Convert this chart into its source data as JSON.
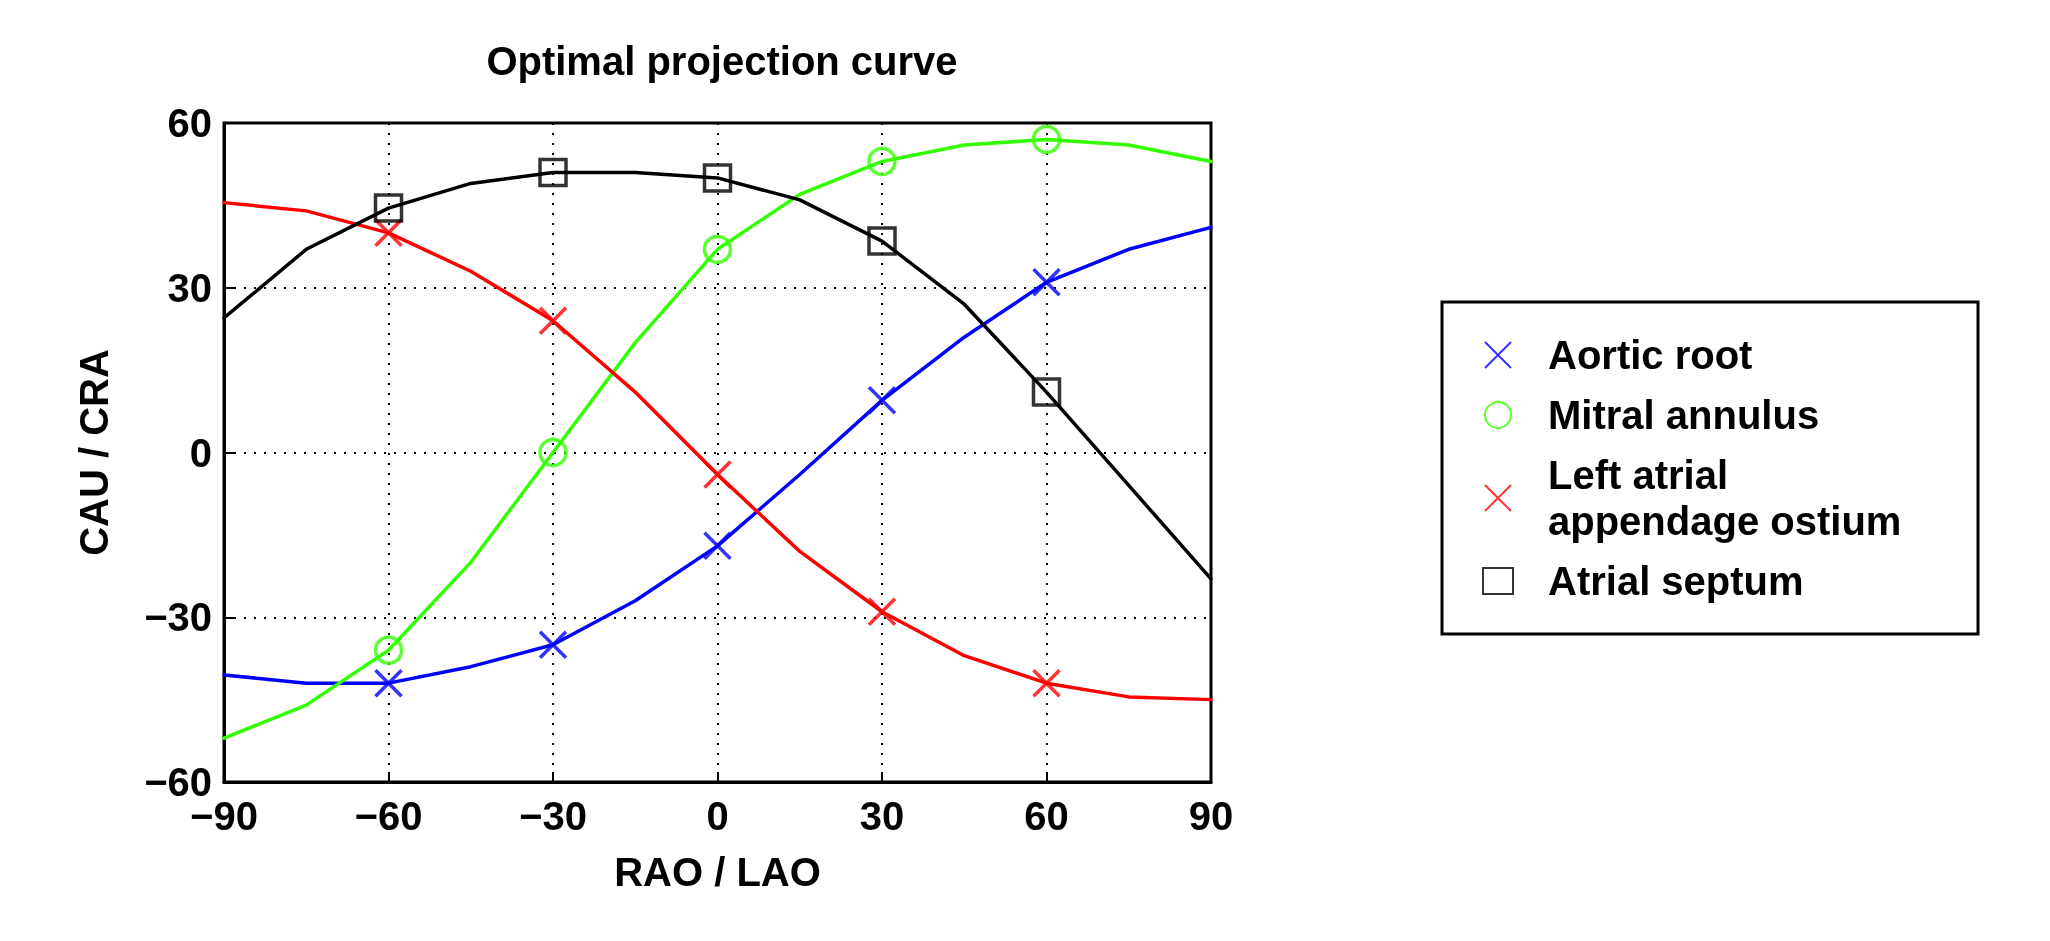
{
  "chart_data": {
    "type": "line",
    "title": "Optimal projection curve",
    "xlabel": "RAO / LAO",
    "ylabel": "CAU / CRA",
    "xlim": [
      -90,
      90
    ],
    "xticks": [
      -90,
      -60,
      -30,
      0,
      30,
      60,
      90
    ],
    "ylim": [
      -60,
      60
    ],
    "yticks": [
      -60,
      -30,
      0,
      30,
      60
    ],
    "grid": true,
    "legend": "right",
    "series": [
      {
        "color": "#0000ff",
        "marker": "none",
        "x": [
          -90,
          -75,
          -60,
          -45,
          -30,
          -15,
          0,
          15,
          30,
          45,
          60,
          75,
          90
        ],
        "values": [
          -40.5,
          -42,
          -42,
          -39,
          -35,
          -27,
          -17,
          -4,
          9.5,
          21,
          31,
          37,
          41
        ]
      },
      {
        "color": "#33ff00",
        "marker": "none",
        "x": [
          -90,
          -75,
          -60,
          -45,
          -30,
          -15,
          0,
          15,
          30,
          45,
          60,
          75,
          90
        ],
        "values": [
          -52,
          -46,
          -36,
          -20,
          0,
          20,
          37,
          47,
          53,
          56,
          57,
          56,
          53
        ]
      },
      {
        "color": "#ff0000",
        "marker": "none",
        "x": [
          -90,
          -75,
          -60,
          -45,
          -30,
          -15,
          0,
          15,
          30,
          45,
          60,
          75,
          90
        ],
        "values": [
          45.5,
          44,
          40,
          33,
          24,
          11,
          -4,
          -18,
          -29,
          -37,
          -42,
          -44.5,
          -45
        ]
      },
      {
        "color": "#000000",
        "marker": "none",
        "x": [
          -90,
          -75,
          -60,
          -45,
          -30,
          -15,
          0,
          15,
          30,
          45,
          60,
          75,
          90
        ],
        "values": [
          24.5,
          37,
          44.5,
          49,
          51,
          51,
          50,
          46,
          38.5,
          27,
          11,
          -6,
          -23
        ]
      },
      {
        "type": "scatter",
        "name": "Aortic root",
        "color": "#0000ff",
        "marker": "cross",
        "x": [
          -60,
          -30,
          0,
          30,
          60
        ],
        "values": [
          -42,
          -35,
          -17,
          9.5,
          31
        ]
      },
      {
        "type": "scatter",
        "name": "Mitral annulus",
        "color": "#33ff00",
        "marker": "circle",
        "x": [
          -60,
          -30,
          0,
          30,
          60
        ],
        "values": [
          -36,
          0,
          37,
          53,
          57
        ]
      },
      {
        "type": "scatter",
        "name": "Left atrial appendage ostium",
        "color": "#ff0000",
        "marker": "cross",
        "x": [
          -60,
          -30,
          0,
          30,
          60
        ],
        "values": [
          40,
          24,
          -4,
          -29,
          -42
        ]
      },
      {
        "type": "scatter",
        "name": "Atrial septum",
        "color": "#000000",
        "marker": "square",
        "x": [
          -60,
          -30,
          0,
          30,
          60
        ],
        "values": [
          44.5,
          51,
          50,
          38.5,
          11
        ]
      }
    ]
  }
}
